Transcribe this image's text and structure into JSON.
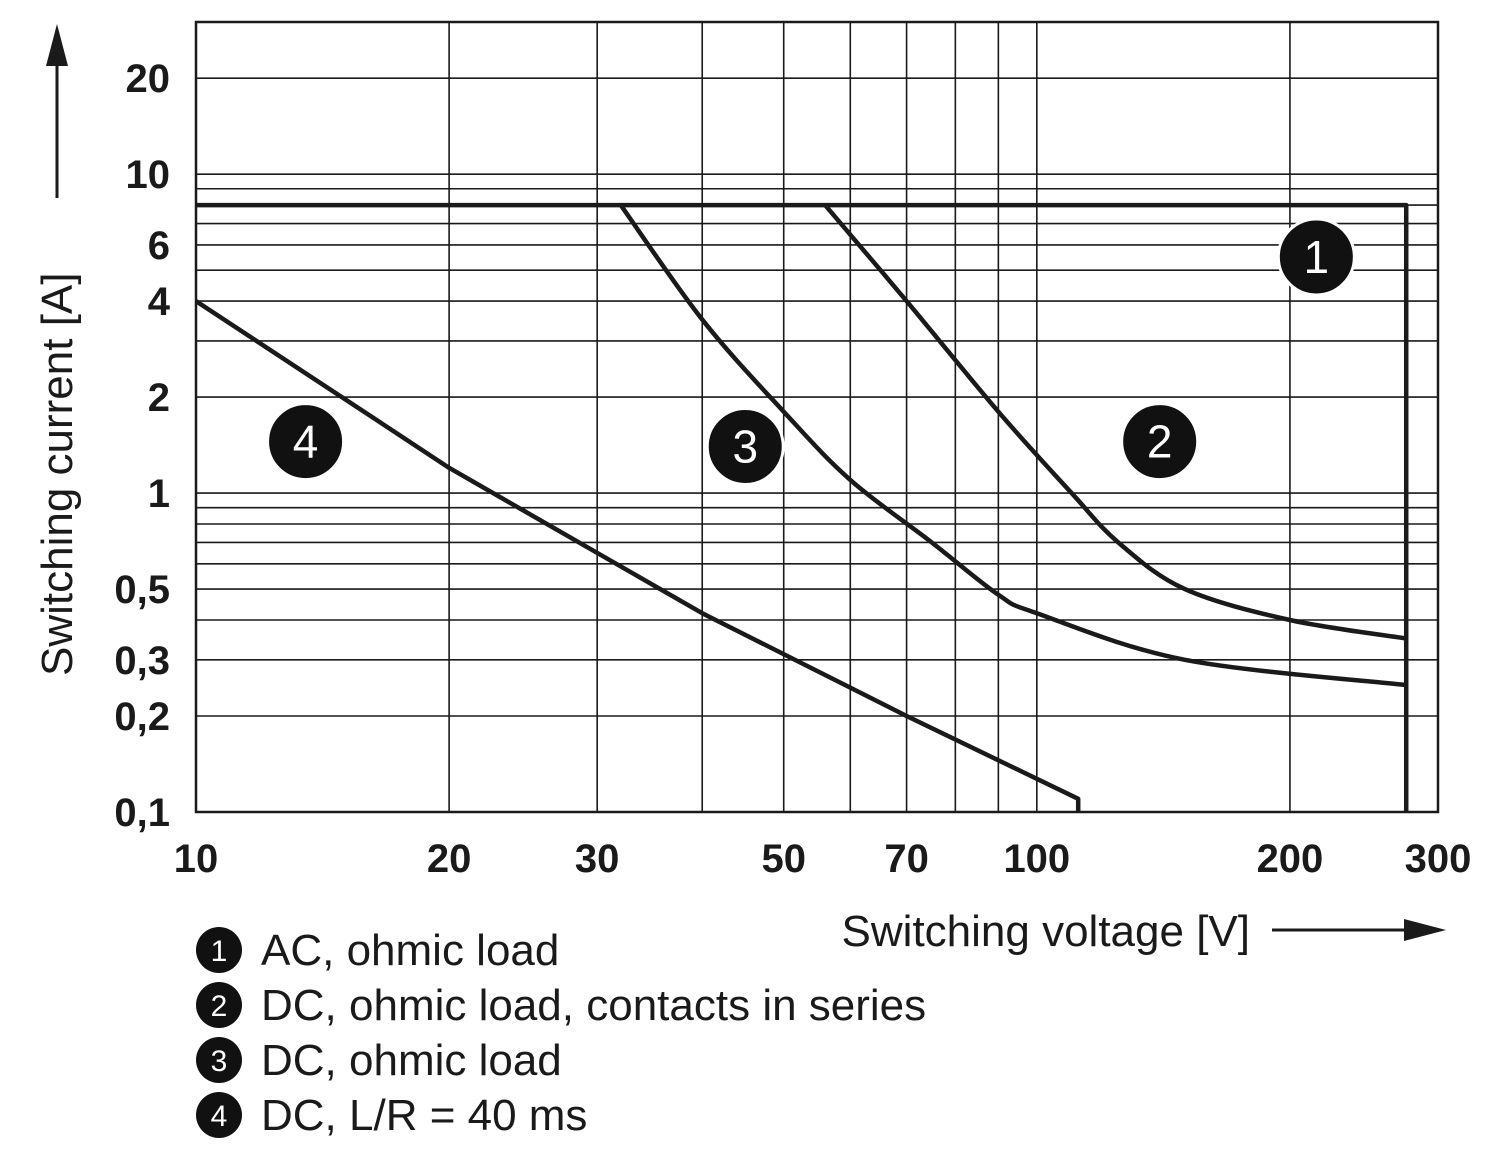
{
  "chart_data": {
    "type": "line",
    "title": "",
    "xlabel": "Switching voltage [V]",
    "ylabel": "Switching current [A]",
    "x_scale": "log",
    "y_scale": "log",
    "xlim": [
      10,
      300
    ],
    "ylim": [
      0.1,
      30
    ],
    "x_ticks": [
      {
        "value": 10,
        "label": "10"
      },
      {
        "value": 20,
        "label": "20"
      },
      {
        "value": 30,
        "label": "30"
      },
      {
        "value": 50,
        "label": "50"
      },
      {
        "value": 70,
        "label": "70"
      },
      {
        "value": 100,
        "label": "100"
      },
      {
        "value": 200,
        "label": "200"
      },
      {
        "value": 300,
        "label": "300"
      }
    ],
    "y_ticks": [
      {
        "value": 0.1,
        "label": "0,1"
      },
      {
        "value": 0.2,
        "label": "0,2"
      },
      {
        "value": 0.3,
        "label": "0,3"
      },
      {
        "value": 0.5,
        "label": "0,5"
      },
      {
        "value": 1,
        "label": "1"
      },
      {
        "value": 2,
        "label": "2"
      },
      {
        "value": 4,
        "label": "4"
      },
      {
        "value": 6,
        "label": "6"
      },
      {
        "value": 10,
        "label": "10"
      },
      {
        "value": 20,
        "label": "20"
      }
    ],
    "grid_x": [
      20,
      30,
      40,
      50,
      60,
      70,
      80,
      90,
      100,
      200
    ],
    "grid_y": [
      0.2,
      0.3,
      0.4,
      0.5,
      0.6,
      0.7,
      0.8,
      0.9,
      1,
      2,
      3,
      4,
      5,
      6,
      7,
      8,
      9,
      10,
      20
    ],
    "grid": true,
    "series": [
      {
        "name": "1",
        "label": "AC, ohmic load",
        "x": [
          10,
          275,
          275
        ],
        "y": [
          8,
          8,
          0.1
        ],
        "marker_at": [
          215,
          5.5
        ]
      },
      {
        "name": "2",
        "label": "DC, ohmic load, contacts in series",
        "x": [
          56,
          70,
          90,
          110,
          125,
          150,
          200,
          275
        ],
        "y": [
          8,
          4,
          1.8,
          1.0,
          0.7,
          0.5,
          0.4,
          0.35
        ],
        "marker_at": [
          140,
          1.45
        ]
      },
      {
        "name": "3",
        "label": "DC, ohmic load",
        "x": [
          32,
          40,
          50,
          60,
          75,
          90,
          100,
          150,
          275
        ],
        "y": [
          8,
          3.5,
          1.8,
          1.1,
          0.7,
          0.48,
          0.42,
          0.3,
          0.25
        ],
        "marker_at": [
          45,
          1.4
        ]
      },
      {
        "name": "4",
        "label": "DC, L/R = 40 ms",
        "x": [
          10,
          20,
          40,
          70,
          112,
          112
        ],
        "y": [
          4,
          1.2,
          0.42,
          0.2,
          0.11,
          0.1
        ],
        "marker_at": [
          13.5,
          1.45
        ]
      }
    ],
    "legend_placement": "bottom-left"
  }
}
